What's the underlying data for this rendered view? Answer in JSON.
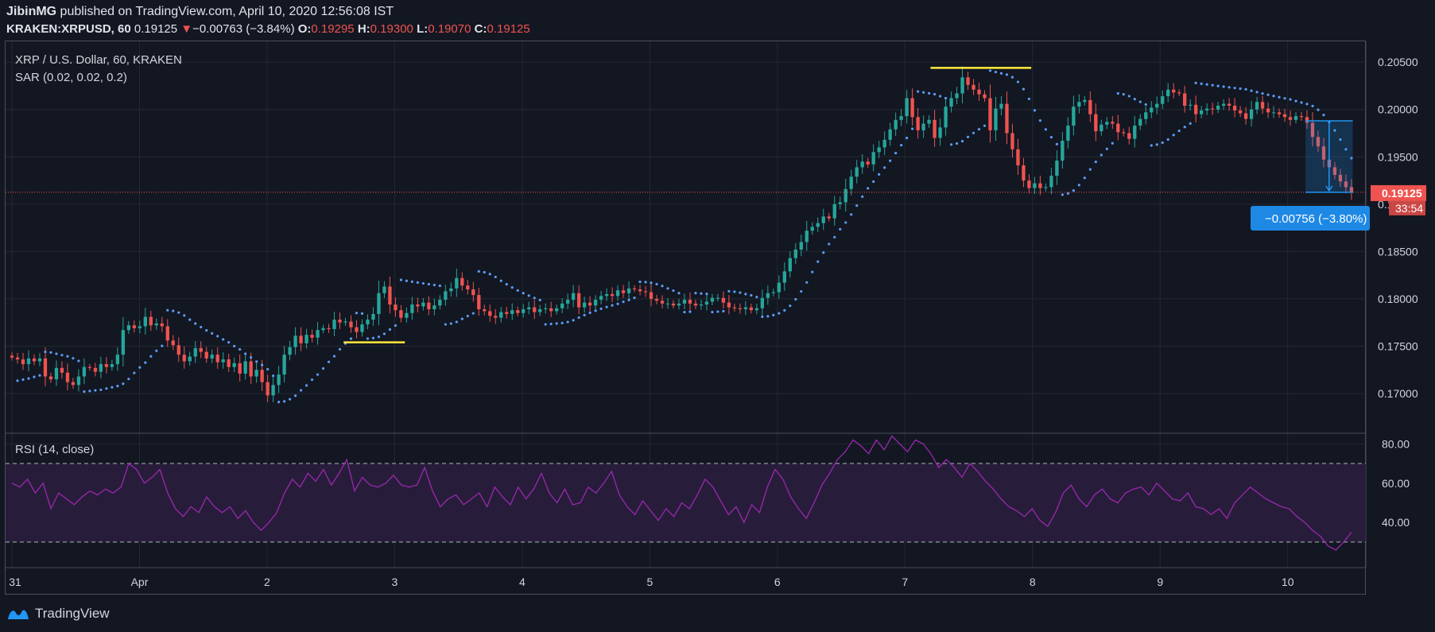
{
  "header": {
    "author": "JibinMG",
    "published_text": " published on TradingView.com, April 10, 2020 12:56:08 IST",
    "symbol": "KRAKEN:XRPUSD, 60",
    "last": "0.19125",
    "change_arrow": "▼",
    "change": "−0.00763 (−3.84%)",
    "o_label": "O:",
    "o": "0.19295",
    "h_label": "H:",
    "h": "0.19300",
    "l_label": "L:",
    "l": "0.19070",
    "c_label": "C:",
    "c": "0.19125"
  },
  "main_pane": {
    "title": "XRP / U.S. Dollar, 60, KRAKEN",
    "indicator": "SAR (0.02, 0.02, 0.2)",
    "price_label": "0.19125",
    "countdown": "33:54",
    "measure_label": "−0.00756 (−3.80%)"
  },
  "rsi_pane": {
    "title": "RSI (14, close)"
  },
  "footer": {
    "brand": "TradingView",
    "logo_icon": "tradingview-logo-icon"
  },
  "colors": {
    "background": "#131722",
    "up": "#26a69a",
    "down": "#ef5350",
    "sar": "#5b9cf6",
    "rsi": "#9c27b0",
    "rsi_band": "#2a1e3d",
    "support_line": "#ffeb3b",
    "measure": "#2196f3"
  },
  "chart_data": [
    {
      "type": "candlestick",
      "title": "XRP / U.S. Dollar, 60, KRAKEN",
      "x_tick_labels": [
        "31",
        "Apr",
        "2",
        "3",
        "4",
        "5",
        "6",
        "7",
        "8",
        "9",
        "10"
      ],
      "x_ticks_day": [
        0,
        1,
        2,
        3,
        4,
        5,
        6,
        7,
        8,
        9,
        10
      ],
      "y_tick_labels": [
        "0.17000",
        "0.17500",
        "0.18000",
        "0.18500",
        "0.19000",
        "0.19500",
        "0.20000",
        "0.20500"
      ],
      "y_ticks": [
        0.17,
        0.175,
        0.18,
        0.185,
        0.19,
        0.195,
        0.2,
        0.205
      ],
      "ylim": [
        0.1658,
        0.2072
      ],
      "xlim_day": [
        -0.05,
        10.65
      ],
      "candles_close": [
        0.1738,
        0.1736,
        0.1731,
        0.1737,
        0.1734,
        0.1737,
        0.1718,
        0.1715,
        0.1727,
        0.1722,
        0.1712,
        0.1709,
        0.1718,
        0.1728,
        0.1727,
        0.1723,
        0.1731,
        0.1728,
        0.1731,
        0.1741,
        0.1767,
        0.1772,
        0.1769,
        0.1771,
        0.1781,
        0.1772,
        0.1774,
        0.1771,
        0.1756,
        0.1751,
        0.1741,
        0.1734,
        0.1739,
        0.1748,
        0.1744,
        0.1737,
        0.1741,
        0.1733,
        0.1736,
        0.1728,
        0.1732,
        0.1721,
        0.1734,
        0.1718,
        0.1725,
        0.1712,
        0.1698,
        0.1709,
        0.172,
        0.1741,
        0.1749,
        0.1761,
        0.1753,
        0.1762,
        0.1759,
        0.1767,
        0.1769,
        0.1768,
        0.1778,
        0.1775,
        0.1776,
        0.177,
        0.1765,
        0.1773,
        0.1778,
        0.1784,
        0.1806,
        0.1813,
        0.1794,
        0.1788,
        0.178,
        0.1785,
        0.1794,
        0.1792,
        0.1796,
        0.1789,
        0.1793,
        0.1799,
        0.1808,
        0.1811,
        0.1822,
        0.1814,
        0.181,
        0.1804,
        0.1789,
        0.1787,
        0.1782,
        0.178,
        0.1786,
        0.1784,
        0.1788,
        0.1785,
        0.1789,
        0.1791,
        0.1786,
        0.1789,
        0.179,
        0.1787,
        0.179,
        0.1795,
        0.1799,
        0.1806,
        0.1791,
        0.1796,
        0.1793,
        0.1799,
        0.1803,
        0.1805,
        0.1803,
        0.1809,
        0.1806,
        0.1811,
        0.181,
        0.1808,
        0.1807,
        0.18,
        0.1798,
        0.1795,
        0.1795,
        0.1793,
        0.1795,
        0.1799,
        0.1795,
        0.1793,
        0.1794,
        0.1797,
        0.1801,
        0.1801,
        0.1796,
        0.1791,
        0.179,
        0.1789,
        0.1791,
        0.1788,
        0.179,
        0.1801,
        0.1806,
        0.1807,
        0.1817,
        0.1829,
        0.1843,
        0.1852,
        0.186,
        0.1872,
        0.1876,
        0.188,
        0.1887,
        0.1885,
        0.19,
        0.1902,
        0.1916,
        0.1929,
        0.1939,
        0.1945,
        0.1942,
        0.1955,
        0.196,
        0.1968,
        0.1979,
        0.1989,
        0.1993,
        0.2012,
        0.1992,
        0.1978,
        0.1985,
        0.1989,
        0.197,
        0.1981,
        0.2003,
        0.2012,
        0.2017,
        0.2034,
        0.2026,
        0.2021,
        0.2016,
        0.2012,
        0.1978,
        0.2001,
        0.2006,
        0.1975,
        0.1958,
        0.1941,
        0.1925,
        0.1917,
        0.1922,
        0.1917,
        0.1918,
        0.193,
        0.1946,
        0.1967,
        0.1983,
        0.2003,
        0.2008,
        0.201,
        0.1995,
        0.1977,
        0.1984,
        0.1987,
        0.1985,
        0.1976,
        0.1975,
        0.1969,
        0.1983,
        0.199,
        0.1997,
        0.2002,
        0.2006,
        0.2014,
        0.2021,
        0.2018,
        0.2017,
        0.2004,
        0.2005,
        0.1995,
        0.1999,
        0.2001,
        0.2,
        0.2004,
        0.2006,
        0.2004,
        0.1999,
        0.1996,
        0.199,
        0.2,
        0.2008,
        0.2001,
        0.1997,
        0.1997,
        0.1995,
        0.1992,
        0.1989,
        0.1993,
        0.1992,
        0.1986,
        0.1971,
        0.1961,
        0.1947,
        0.1939,
        0.1931,
        0.1924,
        0.1918,
        0.1912
      ],
      "series": [
        {
          "name": "SAR (0.02, 0.02, 0.2)",
          "type": "dots"
        }
      ]
    },
    {
      "type": "line",
      "title": "RSI (14, close)",
      "y_tick_labels": [
        "40.00",
        "60.00",
        "80.00"
      ],
      "y_ticks": [
        40,
        60,
        80
      ],
      "ylim": [
        17,
        85
      ],
      "band": [
        30,
        70
      ],
      "values": [
        60,
        58,
        62,
        55,
        60,
        47,
        55,
        52,
        49,
        53,
        56,
        54,
        57,
        55,
        58,
        70,
        67,
        60,
        63,
        67,
        55,
        47,
        43,
        48,
        45,
        53,
        48,
        45,
        48,
        42,
        46,
        40,
        36,
        40,
        45,
        55,
        62,
        58,
        65,
        61,
        67,
        59,
        65,
        72,
        56,
        63,
        59,
        58,
        60,
        64,
        59,
        58,
        59,
        68,
        56,
        48,
        52,
        54,
        49,
        52,
        55,
        48,
        58,
        53,
        49,
        58,
        52,
        57,
        65,
        55,
        50,
        57,
        49,
        50,
        58,
        55,
        60,
        66,
        54,
        48,
        44,
        51,
        46,
        41,
        47,
        43,
        50,
        47,
        54,
        62,
        58,
        51,
        44,
        48,
        40,
        49,
        45,
        58,
        67,
        62,
        53,
        47,
        42,
        50,
        59,
        65,
        72,
        76,
        82,
        79,
        75,
        82,
        77,
        84,
        80,
        76,
        82,
        80,
        75,
        68,
        72,
        68,
        63,
        70,
        66,
        61,
        57,
        52,
        48,
        46,
        43,
        47,
        41,
        38,
        45,
        55,
        59,
        52,
        48,
        54,
        57,
        52,
        50,
        55,
        57,
        58,
        54,
        60,
        56,
        52,
        51,
        55,
        48,
        47,
        44,
        47,
        42,
        50,
        54,
        58,
        55,
        52,
        50,
        48,
        47,
        43,
        40,
        36,
        33,
        28,
        26,
        30,
        35
      ]
    }
  ]
}
